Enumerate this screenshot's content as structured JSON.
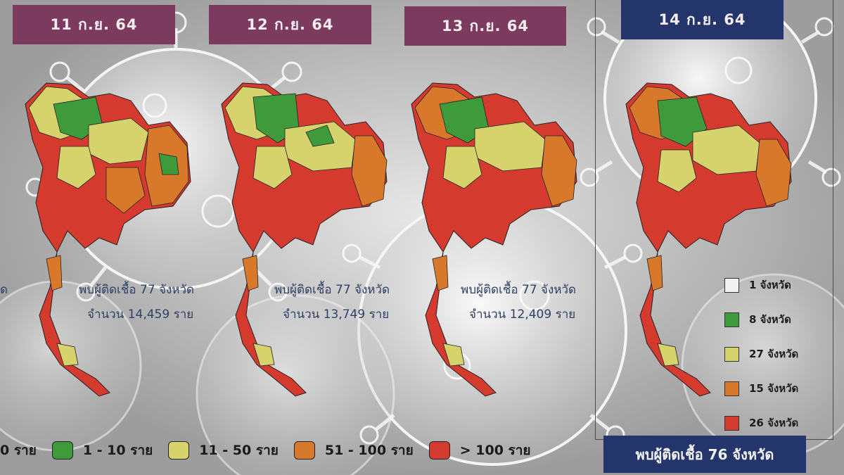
{
  "dates": [
    "11 ก.ย. 64",
    "12 ก.ย. 64",
    "13 ก.ย. 64",
    "14 ก.ย. 64"
  ],
  "maps": [
    {
      "found": "พบผู้ติดเชื้อ 77 จังหวัด",
      "count": "จำนวน 14,459 ราย"
    },
    {
      "found": "พบผู้ติดเชื้อ 77 จังหวัด",
      "count": "จำนวน 13,749 ราย"
    },
    {
      "found": "พบผู้ติดเชื้อ 77 จังหวัด",
      "count": "จำนวน 12,409 ราย"
    }
  ],
  "left_fragment": "ด",
  "side_legend": [
    {
      "label": "1 จังหวัด",
      "color": "#f2f2f2"
    },
    {
      "label": "8 จังหวัด",
      "color": "#3e9a3a"
    },
    {
      "label": "27 จังหวัด",
      "color": "#d6d36c"
    },
    {
      "label": "15 จังหวัด",
      "color": "#d8782a"
    },
    {
      "label": "26 จังหวัด",
      "color": "#d53a2e"
    }
  ],
  "bottom_legend": {
    "zero": "0  ราย",
    "items": [
      {
        "label": "1 - 10   ราย",
        "color": "#3e9a3a"
      },
      {
        "label": "11 - 50 ราย",
        "color": "#d6d36c"
      },
      {
        "label": "51 - 100 ราย",
        "color": "#d8782a"
      },
      {
        "label": "> 100   ราย",
        "color": "#d53a2e"
      }
    ]
  },
  "footer": "พบผู้ติดเชื้อ 76 จังหวัด",
  "colors": {
    "header_maroon": "#7b3a5e",
    "header_navy": "#24356b",
    "green": "#3e9a3a",
    "yellow": "#d6d36c",
    "orange": "#d8782a",
    "red": "#d53a2e"
  }
}
